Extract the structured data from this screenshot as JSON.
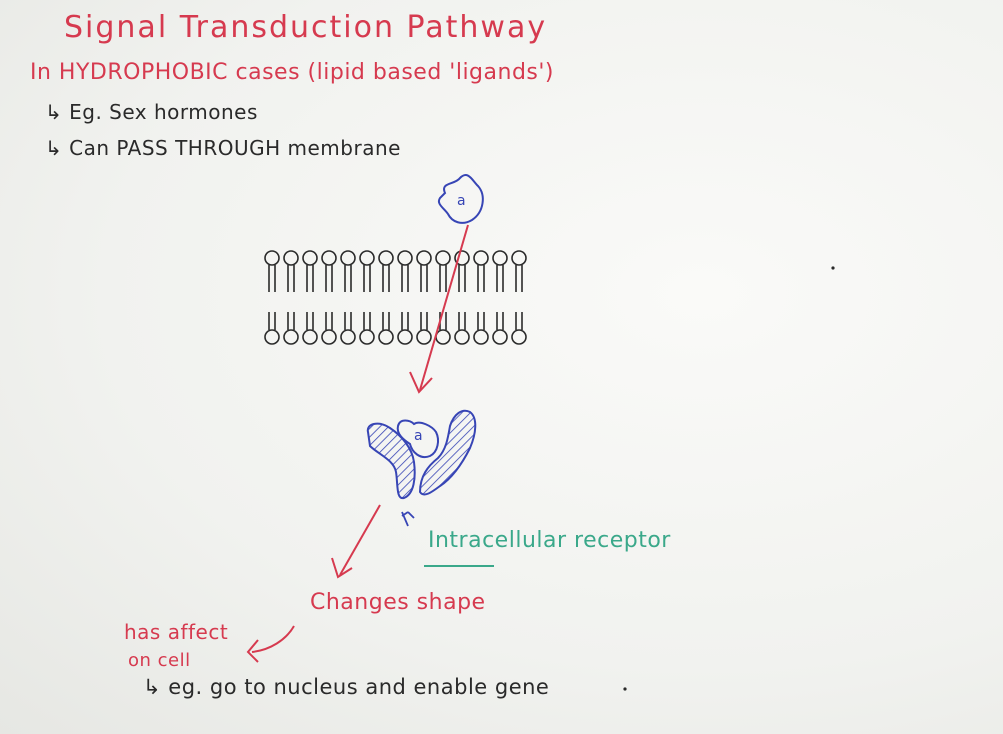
{
  "notes": {
    "title": "Signal Transduction Pathway",
    "subheading": "In HYDROPHOBIC cases (lipid based 'ligands')",
    "bullet_1": "↳ Eg. Sex hormones",
    "bullet_2": "↳ Can PASS THROUGH membrane"
  },
  "diagram": {
    "ligand_label": "a",
    "bound_ligand_label": "a",
    "receptor_label": "Intracellular receptor",
    "shape_label": "Changes shape",
    "affect_line_1": "has affect",
    "affect_line_2": "on cell",
    "example": "↳ eg. go to nucleus and enable gene"
  },
  "colors": {
    "red_marker": "#d63a4f",
    "black_marker": "#2a2a2a",
    "blue_marker": "#3745b5",
    "green_marker": "#3aa88a"
  }
}
